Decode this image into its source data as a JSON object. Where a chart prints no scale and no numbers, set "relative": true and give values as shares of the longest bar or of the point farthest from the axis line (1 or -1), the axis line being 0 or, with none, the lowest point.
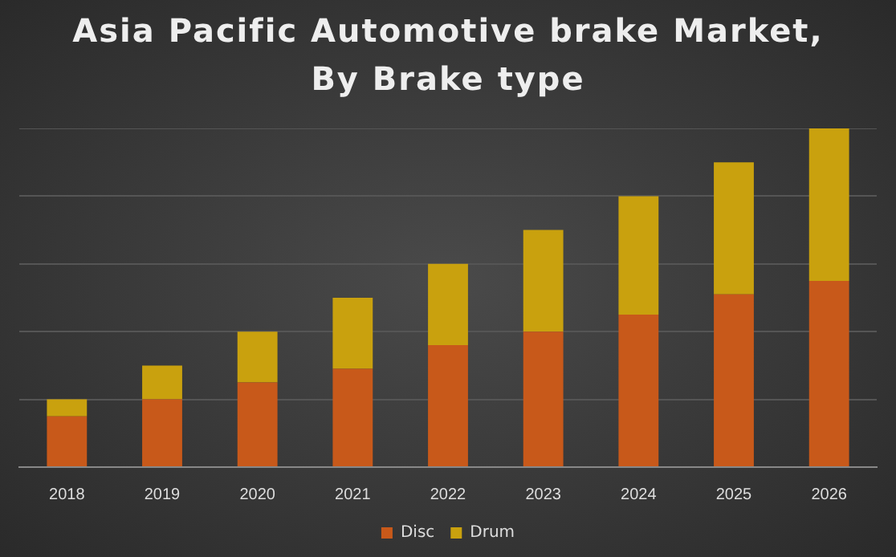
{
  "chart_data": {
    "type": "bar",
    "title": "Asia Pacific Automotive brake Market,\nBy Brake type",
    "categories": [
      "2018",
      "2019",
      "2020",
      "2021",
      "2022",
      "2023",
      "2024",
      "2025",
      "2026"
    ],
    "stacked": true,
    "relative": true,
    "grid": "y",
    "legend": "bottom",
    "series": [
      {
        "name": "Disc",
        "color": "#c8591a",
        "values": [
          0.15,
          0.2,
          0.25,
          0.29,
          0.36,
          0.4,
          0.45,
          0.51,
          0.55
        ]
      },
      {
        "name": "Drum",
        "color": "#c9a10e",
        "values": [
          0.05,
          0.1,
          0.15,
          0.21,
          0.24,
          0.3,
          0.35,
          0.39,
          0.45
        ]
      }
    ]
  }
}
